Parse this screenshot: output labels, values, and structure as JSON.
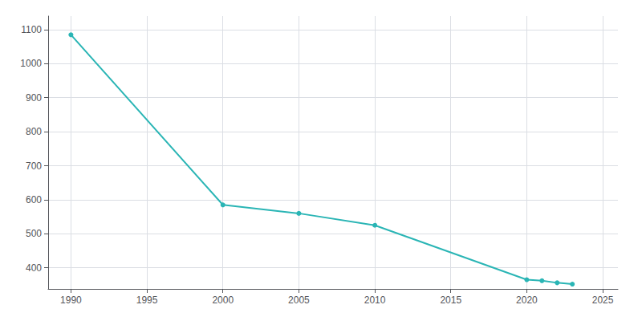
{
  "chart_data": {
    "type": "line",
    "x": [
      1990,
      2000,
      2005,
      2010,
      2020,
      2021,
      2022,
      2023
    ],
    "values": [
      1085,
      585,
      560,
      525,
      365,
      362,
      356,
      352
    ],
    "color": "#2ab5b5",
    "marker": "circle",
    "xlim": [
      1988.5,
      2026
    ],
    "ylim": [
      338,
      1140
    ],
    "xticks": [
      1990,
      1995,
      2000,
      2005,
      2010,
      2015,
      2020,
      2025
    ],
    "yticks": [
      400,
      500,
      600,
      700,
      800,
      900,
      1000,
      1100
    ],
    "grid": true
  }
}
